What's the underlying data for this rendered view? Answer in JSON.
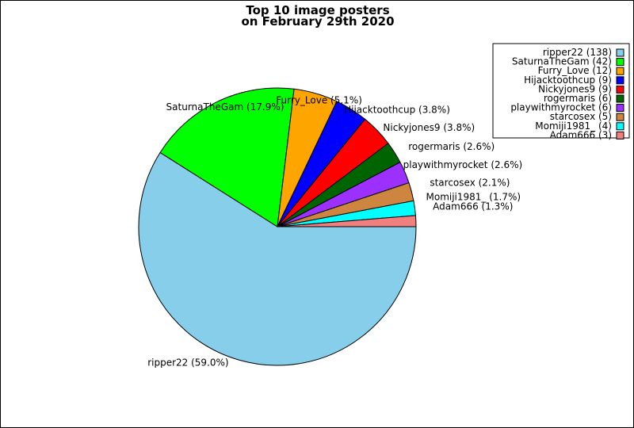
{
  "chart_data": {
    "type": "pie",
    "title": "Top 10 image posters\non February 29th 2020",
    "title_lines": [
      "Top 10 image posters",
      "on February 29th 2020"
    ],
    "legend_position": "top-right",
    "slices": [
      {
        "label": "ripper22",
        "value": 138,
        "percent_label": "ripper22 (59.0%)",
        "legend_label": "ripper22 (138)",
        "color": "#87CEEB"
      },
      {
        "label": "SaturnaTheGam",
        "value": 42,
        "percent_label": "SaturnaTheGam (17.9%)",
        "legend_label": "SaturnaTheGam (42)",
        "color": "#00FF00"
      },
      {
        "label": "Furry_Love",
        "value": 12,
        "percent_label": "Furry_Love (5.1%)",
        "legend_label": "Furry_Love (12)",
        "color": "#FFA500"
      },
      {
        "label": "Hijacktoothcup",
        "value": 9,
        "percent_label": "Hijacktoothcup (3.8%)",
        "legend_label": "Hijacktoothcup (9)",
        "color": "#0000FF"
      },
      {
        "label": "Nickyjones9",
        "value": 9,
        "percent_label": "Nickyjones9 (3.8%)",
        "legend_label": "Nickyjones9 (9)",
        "color": "#FF0000"
      },
      {
        "label": "rogermaris",
        "value": 6,
        "percent_label": "rogermaris (2.6%)",
        "legend_label": "rogermaris (6)",
        "color": "#006400"
      },
      {
        "label": "playwithmyrocket",
        "value": 6,
        "percent_label": "playwithmyrocket (2.6%)",
        "legend_label": "playwithmyrocket (6)",
        "color": "#9B30FF"
      },
      {
        "label": "starcosex",
        "value": 5,
        "percent_label": "starcosex (2.1%)",
        "legend_label": "starcosex (5)",
        "color": "#CD853F"
      },
      {
        "label": "Momiji1981_",
        "value": 4,
        "percent_label": "Momiji1981_ (1.7%)",
        "legend_label": "Momiji1981_ (4)",
        "color": "#00FFFF"
      },
      {
        "label": "Adam666",
        "value": 3,
        "percent_label": "Adam666 (1.3%)",
        "legend_label": "Adam666 (3)",
        "color": "#F08080"
      }
    ]
  }
}
